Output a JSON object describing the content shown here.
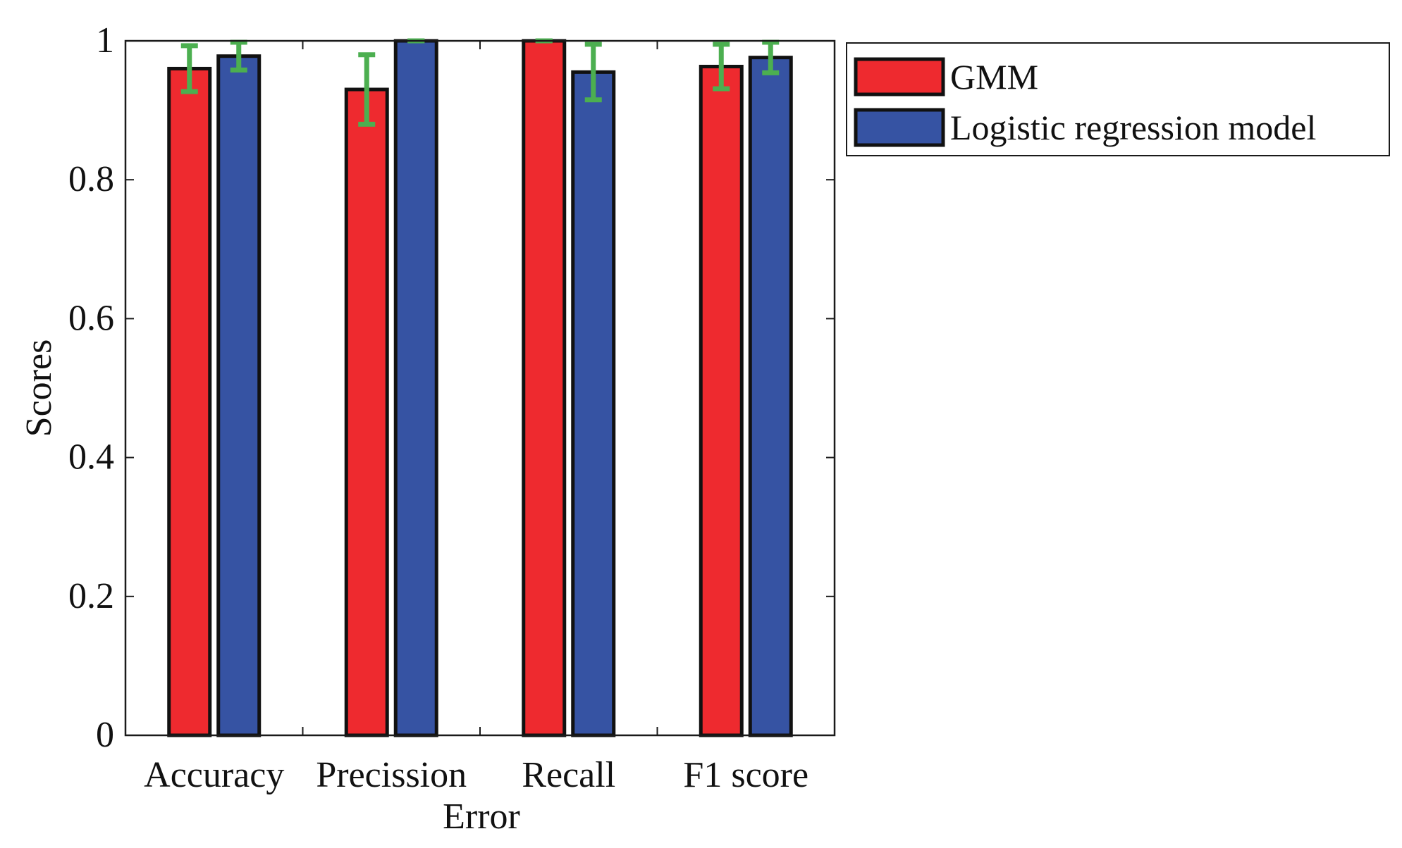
{
  "chart_data": {
    "type": "bar",
    "categories": [
      "Accuracy",
      "Precission",
      "Recall",
      "F1 score"
    ],
    "series": [
      {
        "name": "GMM",
        "color": "#ee2a2f",
        "values": [
          0.96,
          0.93,
          1.0,
          0.963
        ],
        "error": [
          0.033,
          0.05,
          0.0,
          0.032
        ]
      },
      {
        "name": "Logistic regression model",
        "color": "#3653a3",
        "values": [
          0.978,
          1.0,
          0.955,
          0.976
        ],
        "error": [
          0.02,
          0.0,
          0.04,
          0.022
        ]
      }
    ],
    "title": "",
    "xlabel": "Error",
    "ylabel": "Scores",
    "ylim": [
      0,
      1
    ],
    "yticks": [
      "0",
      "0.2",
      "0.4",
      "0.6",
      "0.8",
      "1"
    ],
    "error_bar_color": "#4caf50",
    "grid": false,
    "legend_position": "outside-top-right"
  }
}
